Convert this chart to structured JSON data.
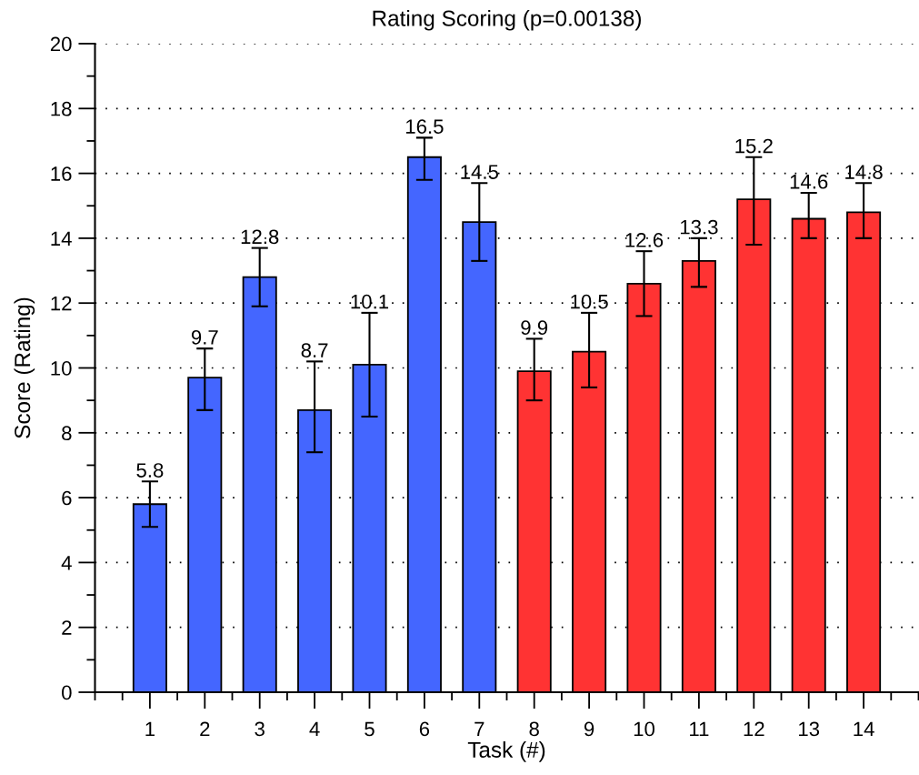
{
  "chart_data": {
    "type": "bar",
    "title": "Rating Scoring (p=0.00138)",
    "xlabel": "Task (#)",
    "ylabel": "Score (Rating)",
    "x": [
      1,
      2,
      3,
      4,
      5,
      6,
      7,
      8,
      9,
      10,
      11,
      12,
      13,
      14
    ],
    "values": [
      5.8,
      9.7,
      12.8,
      8.7,
      10.1,
      16.5,
      14.5,
      9.9,
      10.5,
      12.6,
      13.3,
      15.2,
      14.6,
      14.8
    ],
    "errors": [
      [
        5.1,
        6.5
      ],
      [
        8.7,
        10.6
      ],
      [
        11.9,
        13.7
      ],
      [
        7.4,
        10.2
      ],
      [
        8.5,
        11.7
      ],
      [
        15.8,
        17.1
      ],
      [
        13.3,
        15.7
      ],
      [
        9.0,
        10.9
      ],
      [
        9.4,
        11.7
      ],
      [
        11.6,
        13.6
      ],
      [
        12.5,
        14.0
      ],
      [
        13.8,
        16.5
      ],
      [
        14.0,
        15.4
      ],
      [
        14.0,
        15.7
      ]
    ],
    "colors": [
      "#4466ff",
      "#4466ff",
      "#4466ff",
      "#4466ff",
      "#4466ff",
      "#4466ff",
      "#4466ff",
      "#ff3333",
      "#ff3333",
      "#ff3333",
      "#ff3333",
      "#ff3333",
      "#ff3333",
      "#ff3333"
    ],
    "data_labels": true,
    "xlim": [
      0,
      15
    ],
    "xticks": [
      1,
      2,
      3,
      4,
      5,
      6,
      7,
      8,
      9,
      10,
      11,
      12,
      13,
      14
    ],
    "ylim": [
      0,
      20
    ],
    "yticks": [
      0,
      2,
      4,
      6,
      8,
      10,
      12,
      14,
      16,
      18,
      20
    ],
    "grid": "y"
  }
}
